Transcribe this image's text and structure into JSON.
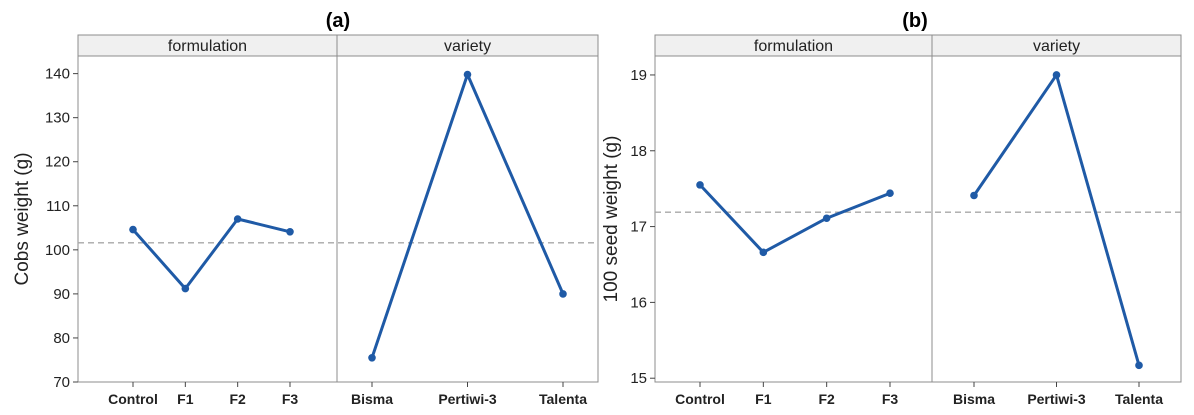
{
  "colors": {
    "series": "#1f5aa6",
    "mean_line": "#a8a8a8"
  },
  "chart_data": [
    {
      "type": "line",
      "title": "(a)",
      "ylabel": "Cobs weight (g)",
      "xlabel": "",
      "ylim": [
        70,
        144
      ],
      "yticks": [
        70,
        80,
        90,
        100,
        110,
        120,
        130,
        140
      ],
      "grand_mean": 101.6,
      "grid": false,
      "legend": "none",
      "panels": [
        {
          "label": "formulation",
          "categories": [
            "Control",
            "F1",
            "F2",
            "F3"
          ],
          "values": [
            104.6,
            91.2,
            107.0,
            104.1
          ]
        },
        {
          "label": "variety",
          "categories": [
            "Bisma",
            "Pertiwi-3",
            "Talenta"
          ],
          "values": [
            75.5,
            139.8,
            90.0
          ]
        }
      ]
    },
    {
      "type": "line",
      "title": "(b)",
      "ylabel": "100 seed weight (g)",
      "xlabel": "",
      "ylim": [
        14.95,
        19.25
      ],
      "yticks": [
        15,
        16,
        17,
        18,
        19
      ],
      "grand_mean": 17.19,
      "grid": false,
      "legend": "none",
      "panels": [
        {
          "label": "formulation",
          "categories": [
            "Control",
            "F1",
            "F2",
            "F3"
          ],
          "values": [
            17.55,
            16.66,
            17.11,
            17.44
          ]
        },
        {
          "label": "variety",
          "categories": [
            "Bisma",
            "Pertiwi-3",
            "Talenta"
          ],
          "values": [
            17.41,
            19.0,
            15.17
          ]
        }
      ]
    }
  ]
}
